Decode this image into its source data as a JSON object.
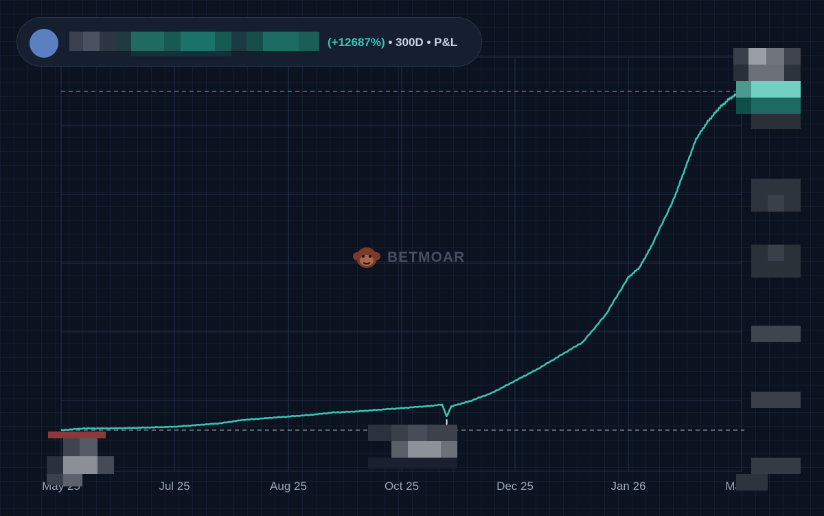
{
  "header": {
    "pnl_percent": "(+12687%)",
    "period": "• 300D",
    "metric": "• P&L",
    "avatar_color": "#5b80c2"
  },
  "watermark": {
    "text": "BETMOAR"
  },
  "colors": {
    "line": "#37c5b2",
    "baseline_dashed": "#8d95a3",
    "peak_dashed": "#37c5b2",
    "background": "#0b1220"
  },
  "chart_data": {
    "type": "line",
    "title": "",
    "xlabel": "",
    "ylabel": "",
    "x_ticks": [
      "May 25",
      "Jul 25",
      "Aug 25",
      "Oct 25",
      "Dec 25",
      "Jan 26",
      "Ma"
    ],
    "grid": true,
    "x_unit": "days since start of 300D window",
    "xlim": [
      0,
      300
    ],
    "ylim": [
      0,
      100
    ],
    "series": [
      {
        "name": "",
        "x": [
          0,
          10,
          20,
          30,
          40,
          50,
          60,
          70,
          80,
          90,
          100,
          110,
          120,
          130,
          140,
          150,
          160,
          168,
          170,
          172,
          180,
          190,
          200,
          210,
          220,
          230,
          240,
          250,
          255,
          260,
          270,
          275,
          280,
          285,
          290,
          295,
          300
        ],
        "y": [
          0,
          0.5,
          0.5,
          0.6,
          0.8,
          1.0,
          1.5,
          2.0,
          3.0,
          3.5,
          4.0,
          4.5,
          5.2,
          5.5,
          6.0,
          6.5,
          7.0,
          7.5,
          4.0,
          7.0,
          8.5,
          11,
          14.5,
          18,
          22,
          26,
          34,
          45,
          48,
          54,
          68,
          77,
          86,
          91,
          95,
          98,
          100
        ]
      }
    ],
    "reference_lines": [
      {
        "kind": "baseline",
        "y": 0,
        "style": "dashed"
      },
      {
        "kind": "peak",
        "y": 100,
        "style": "dashed"
      }
    ]
  }
}
